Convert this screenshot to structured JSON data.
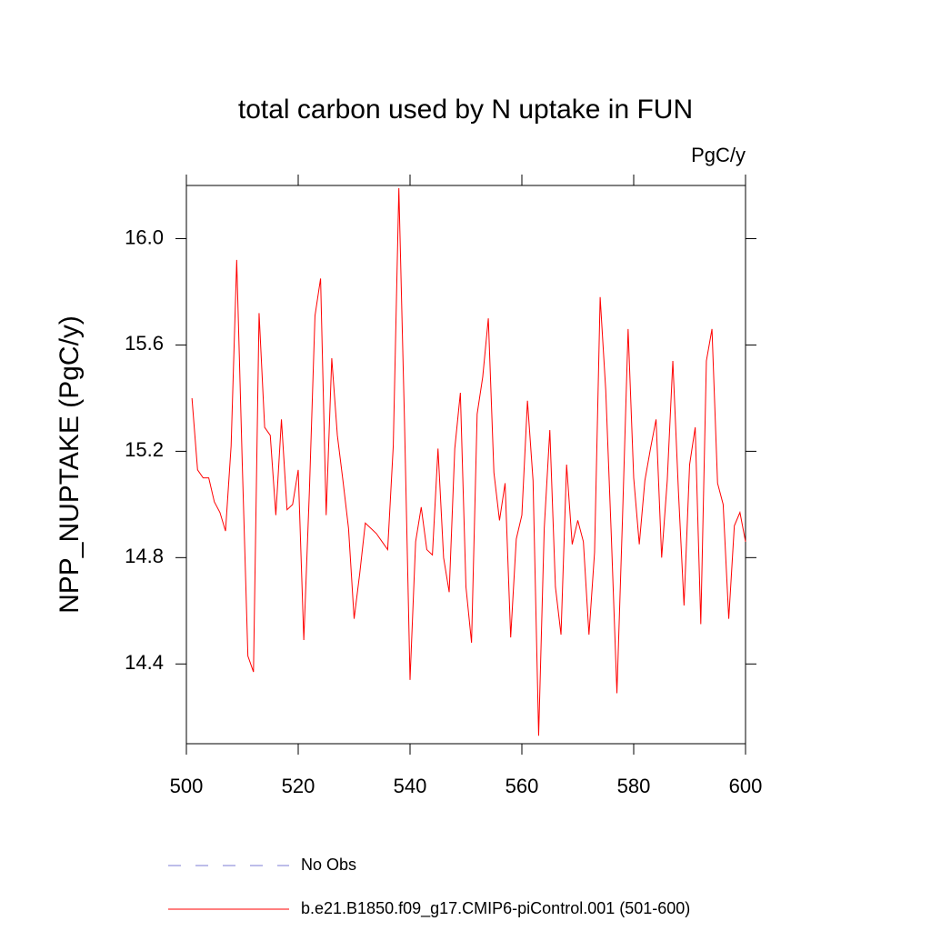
{
  "chart_data": {
    "type": "line",
    "title": "total carbon used by N uptake in FUN",
    "units_label": "PgC/y",
    "ylabel": "NPP_NUPTAKE  (PgC/y)",
    "x": [
      501,
      502,
      503,
      504,
      505,
      506,
      507,
      508,
      509,
      510,
      511,
      512,
      513,
      514,
      515,
      516,
      517,
      518,
      519,
      520,
      521,
      522,
      523,
      524,
      525,
      526,
      527,
      528,
      529,
      530,
      531,
      532,
      533,
      534,
      535,
      536,
      537,
      538,
      539,
      540,
      541,
      542,
      543,
      544,
      545,
      546,
      547,
      548,
      549,
      550,
      551,
      552,
      553,
      554,
      555,
      556,
      557,
      558,
      559,
      560,
      561,
      562,
      563,
      564,
      565,
      566,
      567,
      568,
      569,
      570,
      571,
      572,
      573,
      574,
      575,
      576,
      577,
      578,
      579,
      580,
      581,
      582,
      583,
      584,
      585,
      586,
      587,
      588,
      589,
      590,
      591,
      592,
      593,
      594,
      595,
      596,
      597,
      598,
      599,
      600
    ],
    "series": [
      {
        "name": "b.e21.B1850.f09_g17.CMIP6-piControl.001 (501-600)",
        "color": "#ff0000",
        "values": [
          15.4,
          15.13,
          15.1,
          15.1,
          15.01,
          14.97,
          14.9,
          15.22,
          15.92,
          15.15,
          14.43,
          14.37,
          15.72,
          15.29,
          15.26,
          14.96,
          15.32,
          14.98,
          15.0,
          15.13,
          14.49,
          15.05,
          15.71,
          15.85,
          14.96,
          15.55,
          15.26,
          15.09,
          14.91,
          14.57,
          14.74,
          14.93,
          14.91,
          14.89,
          14.86,
          14.83,
          15.22,
          16.19,
          15.32,
          14.34,
          14.86,
          14.99,
          14.83,
          14.81,
          15.21,
          14.8,
          14.67,
          15.21,
          15.42,
          14.69,
          14.48,
          15.34,
          15.48,
          15.7,
          15.12,
          14.94,
          15.08,
          14.5,
          14.87,
          14.96,
          15.39,
          15.09,
          14.13,
          14.91,
          15.28,
          14.69,
          14.51,
          15.15,
          14.85,
          14.94,
          14.86,
          14.51,
          14.82,
          15.78,
          15.43,
          14.88,
          14.29,
          14.95,
          15.66,
          15.1,
          14.85,
          15.09,
          15.21,
          15.32,
          14.8,
          15.09,
          15.54,
          15.05,
          14.62,
          15.15,
          15.29,
          14.55,
          15.54,
          15.66,
          15.08,
          15.0,
          14.57,
          14.92,
          14.97,
          14.86
        ]
      }
    ],
    "extra_legend": [
      {
        "name": "No Obs",
        "color": "#7b7bd6",
        "dashed": true
      }
    ],
    "xlim": [
      500,
      600
    ],
    "xticks": [
      500,
      520,
      540,
      560,
      580,
      600
    ],
    "ylim": [
      14.1,
      16.2
    ],
    "yticks": [
      14.4,
      14.8,
      15.2,
      15.6,
      {
        "value": 16,
        "label": "16.0"
      }
    ]
  }
}
